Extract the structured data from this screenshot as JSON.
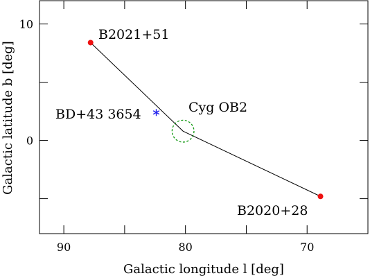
{
  "chart_data": {
    "type": "scatter",
    "title": "",
    "xlabel": "Galactic longitude l [deg]",
    "ylabel": "Galactic latitude b [deg]",
    "xlim": [
      92,
      65
    ],
    "ylim": [
      -8,
      12
    ],
    "grid": false,
    "x_ticks_labeled": [
      90,
      80,
      70
    ],
    "y_ticks_labeled": [
      10,
      0
    ],
    "x_ticks_minor": [
      90,
      85,
      80,
      75,
      70,
      65
    ],
    "y_ticks_minor": [
      10,
      5,
      0,
      -5
    ],
    "path": [
      {
        "x": 87.8,
        "y": 8.4
      },
      {
        "x": 80.2,
        "y": 0.8
      },
      {
        "x": 68.9,
        "y": -4.8
      }
    ],
    "points": [
      {
        "label": "B2021+51",
        "x": 87.8,
        "y": 8.4,
        "marker": "filled-circle",
        "color": "#ee1111"
      },
      {
        "label": "B2020+28",
        "x": 68.9,
        "y": -4.8,
        "marker": "filled-circle",
        "color": "#ee1111"
      },
      {
        "label": "BD+43 3654",
        "x": 82.4,
        "y": 2.4,
        "marker": "asterisk",
        "color": "#2222ee"
      }
    ],
    "region": {
      "label": "Cyg OB2",
      "x": 80.2,
      "y": 0.8,
      "radius_deg": 0.9,
      "style": "dashed",
      "color": "#119911"
    }
  }
}
